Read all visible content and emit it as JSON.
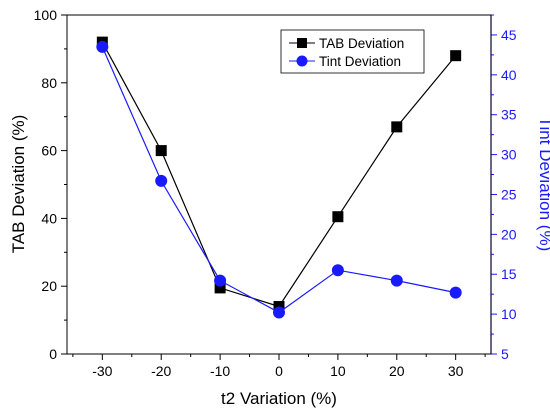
{
  "chart_data": {
    "type": "line",
    "title": "",
    "xlabel": "t2 Variation (%)",
    "ylabel_left": "TAB Deviation (%)",
    "ylabel_right": "Tint Deviation (%)",
    "x": [
      -30,
      -20,
      -10,
      0,
      10,
      20,
      30
    ],
    "x_ticks": [
      "-30",
      "-20",
      "-10",
      "0",
      "10",
      "20",
      "30"
    ],
    "xlim": [
      -36,
      36
    ],
    "ylim_left": [
      0,
      100
    ],
    "ylim_right": [
      5,
      47.5
    ],
    "y_ticks_left": [
      "0",
      "20",
      "40",
      "60",
      "80",
      "100"
    ],
    "y_ticks_right": [
      "5",
      "10",
      "15",
      "20",
      "25",
      "30",
      "35",
      "40",
      "45"
    ],
    "grid": false,
    "legend_position": "top-right",
    "series": [
      {
        "name": "TAB Deviation",
        "axis": "left",
        "marker": "square",
        "color": "#000000",
        "values": [
          92,
          60,
          19.5,
          14,
          40.5,
          67,
          88
        ]
      },
      {
        "name": "Tint Deviation",
        "axis": "right",
        "marker": "circle",
        "color": "#1a1aff",
        "values": [
          43.5,
          26.7,
          14.2,
          10.2,
          15.5,
          14.2,
          12.7
        ]
      }
    ]
  }
}
